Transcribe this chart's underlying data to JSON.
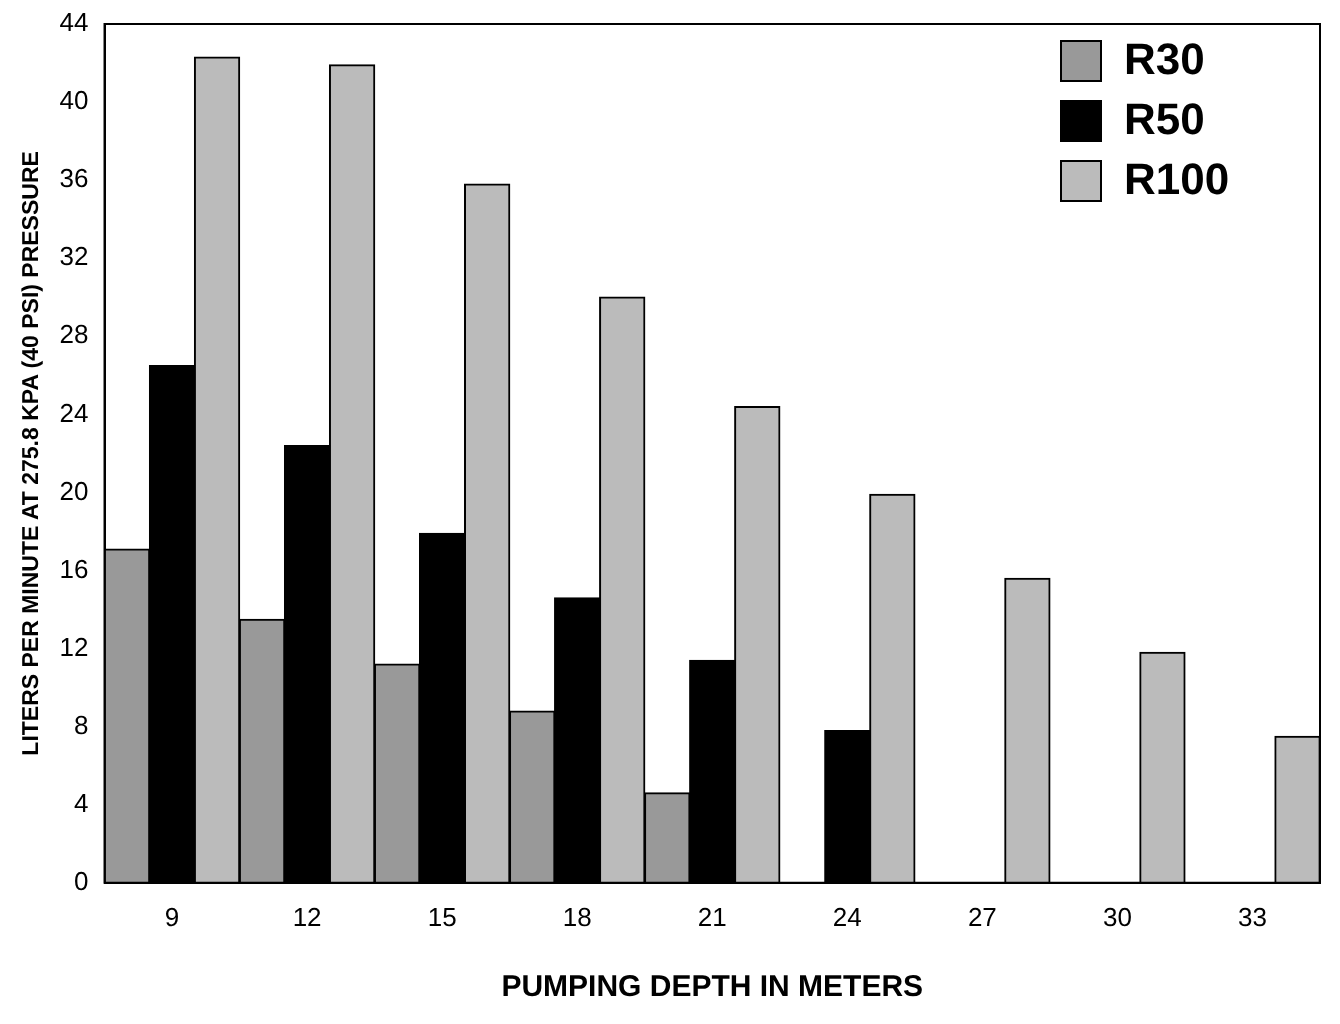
{
  "chart_data": {
    "type": "bar",
    "xlabel": "PUMPING DEPTH IN METERS",
    "ylabel": "LITERS PER MINUTE AT 275.8 KPA (40 PSI) PRESSURE",
    "categories": [
      "9",
      "12",
      "15",
      "18",
      "21",
      "24",
      "27",
      "30",
      "33"
    ],
    "series": [
      {
        "name": "R30",
        "color": "#999999",
        "values": [
          17.1,
          13.5,
          11.2,
          8.8,
          4.6,
          null,
          null,
          null,
          null
        ]
      },
      {
        "name": "R50",
        "color": "#000000",
        "values": [
          26.5,
          22.4,
          17.9,
          14.6,
          11.4,
          7.8,
          null,
          null,
          null
        ]
      },
      {
        "name": "R100",
        "color": "#bbbbbb",
        "values": [
          42.3,
          41.9,
          35.8,
          30.0,
          24.4,
          19.9,
          15.6,
          11.8,
          7.5
        ]
      }
    ],
    "ylim": [
      0,
      44
    ],
    "yticks": [
      0,
      4,
      8,
      12,
      16,
      20,
      24,
      28,
      32,
      36,
      40,
      44
    ],
    "grid": false,
    "legend": "top right"
  }
}
